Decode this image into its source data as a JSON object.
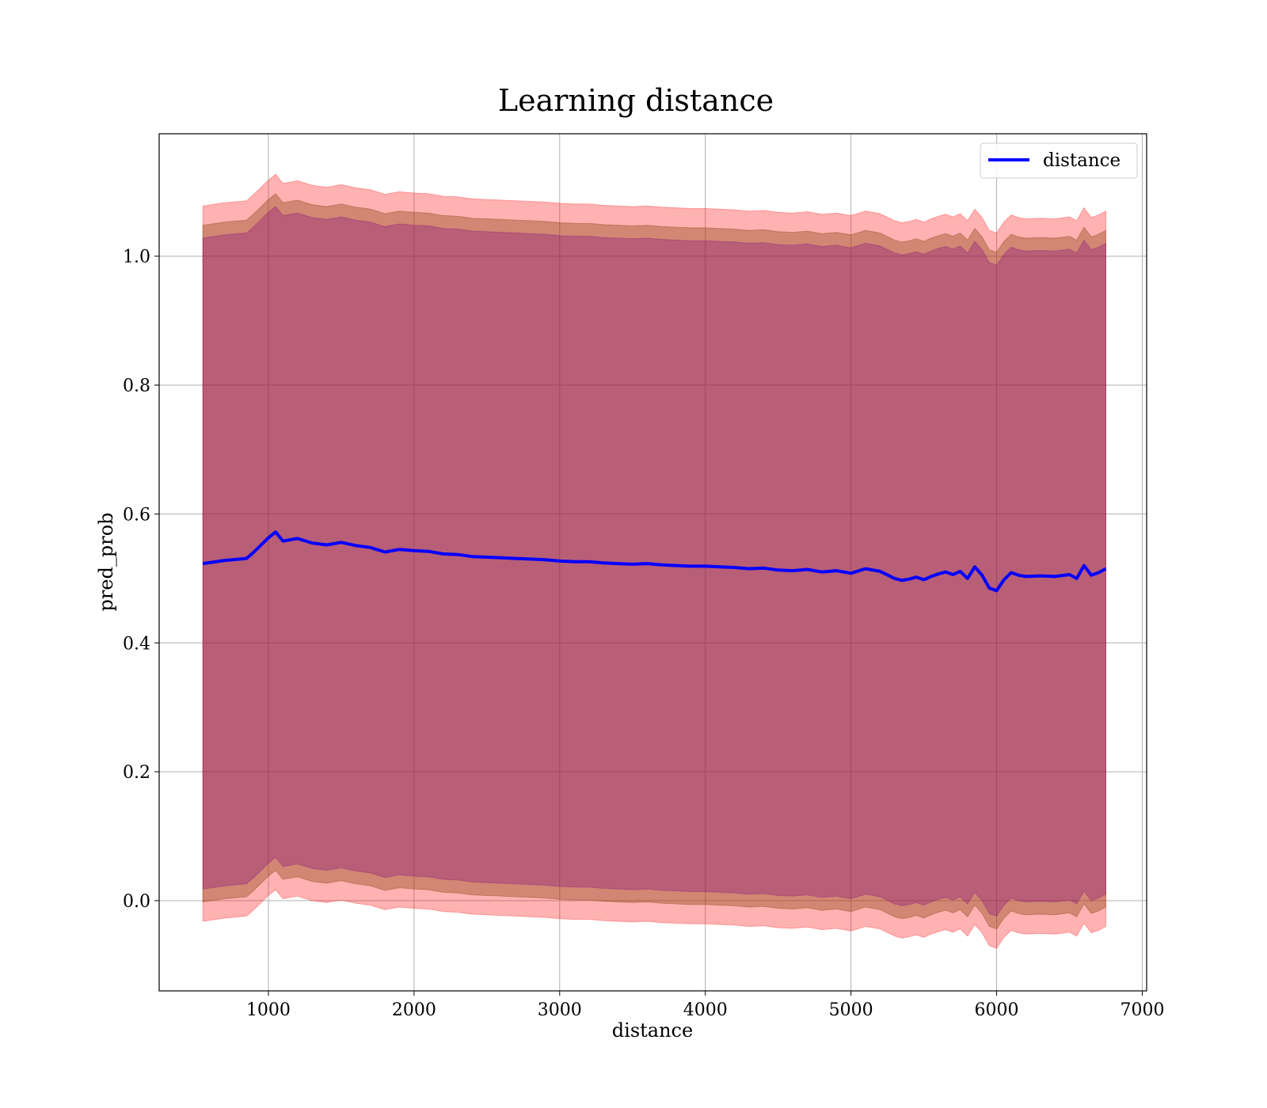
{
  "chart_data": {
    "type": "line",
    "title": "Learning distance",
    "xlabel": "distance",
    "ylabel": "pred_prob",
    "xlim": [
      250,
      7030
    ],
    "ylim": [
      -0.14,
      1.19
    ],
    "xticks": [
      1000,
      2000,
      3000,
      4000,
      5000,
      6000,
      7000
    ],
    "xtick_labels": [
      "1000",
      "2000",
      "3000",
      "4000",
      "5000",
      "6000",
      "7000"
    ],
    "yticks": [
      0.0,
      0.2,
      0.4,
      0.6,
      0.8,
      1.0
    ],
    "ytick_labels": [
      "0.0",
      "0.2",
      "0.4",
      "0.6",
      "0.8",
      "1.0"
    ],
    "grid": true,
    "legend_position": "top-right",
    "series": [
      {
        "name": "distance",
        "color": "#0000ff",
        "x": [
          550,
          700,
          850,
          900,
          1000,
          1050,
          1100,
          1200,
          1300,
          1400,
          1500,
          1600,
          1700,
          1800,
          1900,
          2000,
          2100,
          2200,
          2300,
          2400,
          2500,
          2600,
          2700,
          2800,
          2900,
          3000,
          3100,
          3200,
          3300,
          3400,
          3500,
          3600,
          3700,
          3800,
          3900,
          4000,
          4100,
          4200,
          4300,
          4400,
          4500,
          4600,
          4700,
          4800,
          4900,
          5000,
          5100,
          5200,
          5300,
          5350,
          5400,
          5450,
          5500,
          5550,
          5600,
          5650,
          5700,
          5750,
          5800,
          5850,
          5900,
          5950,
          6000,
          6050,
          6100,
          6150,
          6200,
          6300,
          6400,
          6500,
          6550,
          6600,
          6650,
          6700,
          6750
        ],
        "y": [
          0.523,
          0.528,
          0.531,
          0.541,
          0.563,
          0.572,
          0.558,
          0.562,
          0.555,
          0.552,
          0.556,
          0.551,
          0.548,
          0.541,
          0.545,
          0.543,
          0.542,
          0.538,
          0.537,
          0.534,
          0.533,
          0.532,
          0.531,
          0.53,
          0.529,
          0.527,
          0.526,
          0.526,
          0.524,
          0.523,
          0.522,
          0.523,
          0.521,
          0.52,
          0.519,
          0.519,
          0.518,
          0.517,
          0.515,
          0.516,
          0.513,
          0.512,
          0.514,
          0.51,
          0.512,
          0.508,
          0.515,
          0.511,
          0.5,
          0.497,
          0.499,
          0.502,
          0.498,
          0.503,
          0.507,
          0.51,
          0.506,
          0.511,
          0.5,
          0.518,
          0.505,
          0.485,
          0.481,
          0.498,
          0.509,
          0.505,
          0.503,
          0.504,
          0.503,
          0.506,
          0.5,
          0.52,
          0.505,
          0.509,
          0.515
        ],
        "bands": [
          {
            "color": "#ff0000",
            "opacity": 0.3,
            "half_width": 0.555
          },
          {
            "color": "#8b4513",
            "opacity": 0.4,
            "half_width": 0.525
          },
          {
            "color": "#800080",
            "opacity": 0.3,
            "half_width": 0.505
          }
        ]
      }
    ]
  }
}
